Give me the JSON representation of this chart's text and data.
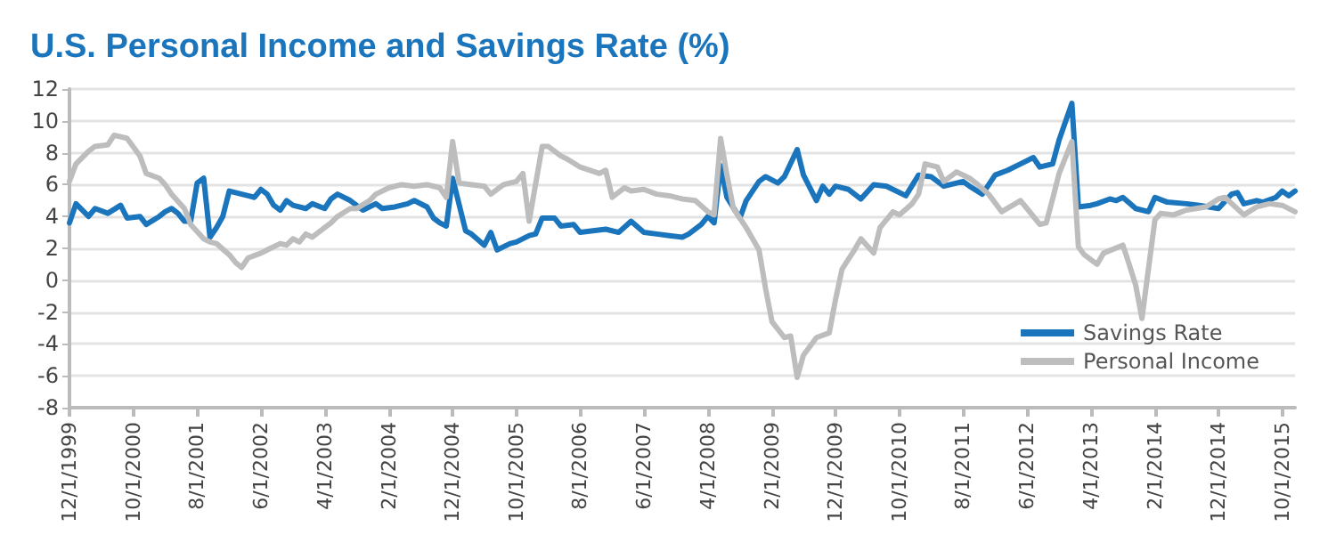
{
  "chart_data": {
    "type": "line",
    "title": "U.S. Personal Income and Savings Rate (%)",
    "xlim": [
      "1999-12",
      "2015-12"
    ],
    "xticks": [
      {
        "value": "1999-12",
        "label": "12/1/1999"
      },
      {
        "value": "2000-10",
        "label": "10/1/2000"
      },
      {
        "value": "2001-08",
        "label": "8/1/2001"
      },
      {
        "value": "2002-06",
        "label": "6/1/2002"
      },
      {
        "value": "2003-04",
        "label": "4/1/2003"
      },
      {
        "value": "2004-02",
        "label": "2/1/2004"
      },
      {
        "value": "2004-12",
        "label": "12/1/2004"
      },
      {
        "value": "2005-10",
        "label": "10/1/2005"
      },
      {
        "value": "2006-08",
        "label": "8/1/2006"
      },
      {
        "value": "2007-06",
        "label": "6/1/2007"
      },
      {
        "value": "2008-04",
        "label": "4/1/2008"
      },
      {
        "value": "2009-02",
        "label": "2/1/2009"
      },
      {
        "value": "2009-12",
        "label": "12/1/2009"
      },
      {
        "value": "2010-10",
        "label": "10/1/2010"
      },
      {
        "value": "2011-08",
        "label": "8/1/2011"
      },
      {
        "value": "2012-06",
        "label": "6/1/2012"
      },
      {
        "value": "2013-04",
        "label": "4/1/2013"
      },
      {
        "value": "2014-02",
        "label": "2/1/2014"
      },
      {
        "value": "2014-12",
        "label": "12/1/2014"
      },
      {
        "value": "2015-10",
        "label": "10/1/2015"
      }
    ],
    "ylim": [
      -8,
      12
    ],
    "yticks": [
      -8,
      -6,
      -4,
      -2,
      0,
      2,
      4,
      6,
      8,
      10,
      12
    ],
    "grid": "y",
    "legend": "bottom right",
    "marker": "none",
    "line_style": "solid",
    "series": [
      {
        "name": "Savings Rate",
        "color": "#1a75bc",
        "x": [
          "1999-12",
          "2000-01",
          "2000-03",
          "2000-04",
          "2000-06",
          "2000-08",
          "2000-09",
          "2000-11",
          "2000-12",
          "2001-02",
          "2001-03",
          "2001-04",
          "2001-05",
          "2001-06",
          "2001-07",
          "2001-08",
          "2001-09",
          "2001-10",
          "2001-11",
          "2001-12",
          "2002-01",
          "2002-03",
          "2002-04",
          "2002-05",
          "2002-06",
          "2002-07",
          "2002-08",
          "2002-09",
          "2002-10",
          "2002-11",
          "2003-01",
          "2003-02",
          "2003-04",
          "2003-05",
          "2003-06",
          "2003-08",
          "2003-10",
          "2003-12",
          "2004-01",
          "2004-03",
          "2004-05",
          "2004-06",
          "2004-08",
          "2004-09",
          "2004-10",
          "2004-11",
          "2004-12",
          "2005-02",
          "2005-03",
          "2005-05",
          "2005-06",
          "2005-07",
          "2005-09",
          "2005-10",
          "2005-12",
          "2006-01",
          "2006-02",
          "2006-04",
          "2006-05",
          "2006-07",
          "2006-08",
          "2006-10",
          "2006-12",
          "2007-02",
          "2007-04",
          "2007-06",
          "2007-08",
          "2007-10",
          "2007-12",
          "2008-01",
          "2008-03",
          "2008-04",
          "2008-05",
          "2008-06",
          "2008-07",
          "2008-09",
          "2008-10",
          "2008-12",
          "2009-01",
          "2009-03",
          "2009-04",
          "2009-06",
          "2009-07",
          "2009-09",
          "2009-10",
          "2009-11",
          "2009-12",
          "2010-02",
          "2010-04",
          "2010-06",
          "2010-08",
          "2010-11",
          "2011-01",
          "2011-03",
          "2011-05",
          "2011-08",
          "2011-09",
          "2011-11",
          "2012-01",
          "2012-03",
          "2012-05",
          "2012-07",
          "2012-08",
          "2012-10",
          "2012-11",
          "2013-01",
          "2013-02",
          "2013-04",
          "2013-05",
          "2013-07",
          "2013-08",
          "2013-09",
          "2013-11",
          "2014-01",
          "2014-02",
          "2014-04",
          "2014-07",
          "2014-09",
          "2014-12",
          "2015-02",
          "2015-03",
          "2015-04",
          "2015-06",
          "2015-07",
          "2015-09",
          "2015-10",
          "2015-11",
          "2015-12"
        ],
        "values": [
          3.6,
          4.8,
          4.0,
          4.5,
          4.2,
          4.7,
          3.9,
          4.0,
          3.5,
          4.0,
          4.3,
          4.5,
          4.2,
          3.7,
          3.7,
          6.1,
          6.4,
          2.7,
          3.3,
          4.0,
          5.6,
          5.4,
          5.3,
          5.2,
          5.7,
          5.4,
          4.7,
          4.4,
          5.0,
          4.7,
          4.5,
          4.8,
          4.5,
          5.1,
          5.4,
          5.0,
          4.4,
          4.8,
          4.5,
          4.6,
          4.8,
          5.0,
          4.6,
          3.9,
          3.6,
          3.4,
          6.4,
          3.1,
          2.9,
          2.2,
          3.0,
          1.9,
          2.3,
          2.4,
          2.8,
          2.9,
          3.9,
          3.9,
          3.4,
          3.5,
          3.0,
          3.1,
          3.2,
          3.0,
          3.7,
          3.0,
          2.9,
          2.8,
          2.7,
          2.9,
          3.5,
          4.0,
          3.6,
          7.2,
          5.2,
          3.9,
          5.0,
          6.2,
          6.5,
          6.1,
          6.5,
          8.2,
          6.6,
          5.0,
          5.9,
          5.4,
          5.9,
          5.7,
          5.1,
          6.0,
          5.9,
          5.3,
          6.6,
          6.5,
          5.9,
          6.2,
          5.9,
          5.4,
          6.6,
          6.9,
          7.3,
          7.7,
          7.1,
          7.3,
          8.8,
          11.1,
          4.6,
          4.7,
          4.8,
          5.1,
          5.0,
          5.2,
          4.5,
          4.3,
          5.2,
          4.9,
          4.8,
          4.7,
          4.5,
          5.4,
          5.5,
          4.8,
          5.0,
          4.9,
          5.2,
          5.6,
          5.3,
          5.6
        ]
      },
      {
        "name": "Personal Income",
        "color": "#bdbdbd",
        "x": [
          "1999-12",
          "2000-01",
          "2000-03",
          "2000-04",
          "2000-06",
          "2000-07",
          "2000-09",
          "2000-11",
          "2000-12",
          "2001-02",
          "2001-03",
          "2001-04",
          "2001-06",
          "2001-07",
          "2001-09",
          "2001-10",
          "2001-11",
          "2002-01",
          "2002-02",
          "2002-03",
          "2002-04",
          "2002-06",
          "2002-07",
          "2002-09",
          "2002-10",
          "2002-11",
          "2002-12",
          "2003-01",
          "2003-02",
          "2003-04",
          "2003-05",
          "2003-06",
          "2003-08",
          "2003-09",
          "2003-11",
          "2003-12",
          "2004-02",
          "2004-04",
          "2004-06",
          "2004-08",
          "2004-10",
          "2004-11",
          "2004-12",
          "2005-01",
          "2005-03",
          "2005-05",
          "2005-06",
          "2005-08",
          "2005-10",
          "2005-11",
          "2005-12",
          "2006-02",
          "2006-03",
          "2006-05",
          "2006-06",
          "2006-08",
          "2006-11",
          "2006-12",
          "2007-01",
          "2007-03",
          "2007-04",
          "2007-06",
          "2007-08",
          "2007-10",
          "2007-12",
          "2008-02",
          "2008-04",
          "2008-05",
          "2008-06",
          "2008-07",
          "2008-08",
          "2008-10",
          "2008-12",
          "2009-01",
          "2009-02",
          "2009-04",
          "2009-05",
          "2009-06",
          "2009-07",
          "2009-09",
          "2009-11",
          "2009-12",
          "2010-01",
          "2010-03",
          "2010-04",
          "2010-06",
          "2010-07",
          "2010-09",
          "2010-10",
          "2010-12",
          "2011-01",
          "2011-02",
          "2011-04",
          "2011-05",
          "2011-07",
          "2011-09",
          "2011-10",
          "2011-12",
          "2012-02",
          "2012-05",
          "2012-06",
          "2012-08",
          "2012-09",
          "2012-10",
          "2012-11",
          "2013-01",
          "2013-02",
          "2013-03",
          "2013-05",
          "2013-06",
          "2013-09",
          "2013-10",
          "2013-11",
          "2013-12",
          "2014-02",
          "2014-03",
          "2014-05",
          "2014-07",
          "2014-10",
          "2014-12",
          "2015-01",
          "2015-04",
          "2015-06",
          "2015-08",
          "2015-10",
          "2015-12"
        ],
        "values": [
          6.2,
          7.3,
          8.1,
          8.4,
          8.5,
          9.1,
          8.9,
          7.8,
          6.7,
          6.4,
          6.0,
          5.4,
          4.5,
          3.5,
          2.6,
          2.4,
          2.3,
          1.6,
          1.1,
          0.8,
          1.4,
          1.7,
          1.9,
          2.3,
          2.2,
          2.6,
          2.4,
          2.9,
          2.7,
          3.3,
          3.6,
          4.0,
          4.5,
          4.5,
          5.0,
          5.4,
          5.8,
          6.0,
          5.9,
          6.0,
          5.8,
          5.2,
          8.7,
          6.1,
          6.0,
          5.9,
          5.4,
          6.0,
          6.2,
          6.7,
          3.7,
          8.4,
          8.4,
          7.8,
          7.6,
          7.1,
          6.7,
          6.9,
          5.2,
          5.8,
          5.6,
          5.7,
          5.4,
          5.3,
          5.1,
          5.0,
          4.3,
          4.1,
          8.9,
          6.6,
          4.5,
          3.3,
          1.9,
          -0.5,
          -2.6,
          -3.6,
          -3.5,
          -6.1,
          -4.7,
          -3.6,
          -3.3,
          -1.2,
          0.7,
          1.9,
          2.6,
          1.7,
          3.3,
          4.3,
          4.1,
          4.8,
          5.4,
          7.3,
          7.1,
          6.2,
          6.8,
          6.4,
          6.1,
          5.4,
          4.3,
          5.0,
          4.5,
          3.5,
          3.6,
          5.1,
          6.7,
          8.7,
          2.1,
          1.6,
          1.0,
          1.7,
          2.2,
          1.0,
          -0.3,
          -2.4,
          3.8,
          4.2,
          4.1,
          4.4,
          4.6,
          5.1,
          5.2,
          4.1,
          4.6,
          4.8,
          4.7,
          4.3
        ]
      }
    ]
  }
}
